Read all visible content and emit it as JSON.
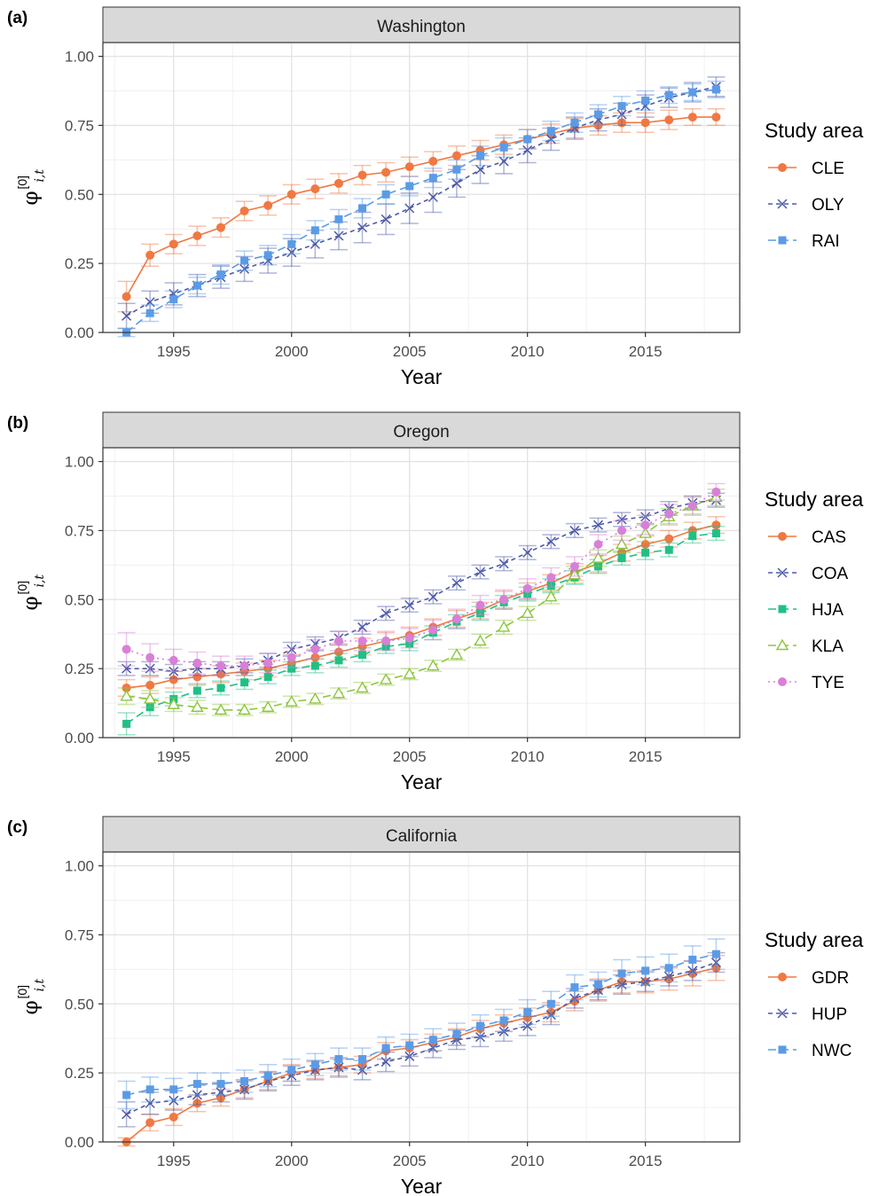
{
  "colors": {
    "CLE": "#f07842",
    "OLY": "#4e5aa8",
    "RAI": "#5b9be6",
    "CAS": "#f07842",
    "COA": "#4e5aa8",
    "HJA": "#20c085",
    "KLA": "#8dc63f",
    "TYE": "#d880d8",
    "GDR": "#f07842",
    "HUP": "#4e5aa8",
    "NWC": "#5b9be6"
  },
  "chart_data": [
    {
      "type": "line",
      "panel_tag": "(a)",
      "strip_title": "Washington",
      "xlabel": "Year",
      "ylabel_symbol": "φ",
      "ylabel_sub": "i,t",
      "ylabel_sup": "[0]",
      "ylim": [
        0,
        1.05
      ],
      "yticks": [
        "0.00",
        "0.25",
        "0.50",
        "0.75",
        "1.00"
      ],
      "xticks": [
        "1995",
        "2000",
        "2005",
        "2010",
        "2015"
      ],
      "legend_title": "Study area",
      "legend_position": "right",
      "grid": true,
      "x": [
        1993,
        1994,
        1995,
        1996,
        1997,
        1998,
        1999,
        2000,
        2001,
        2002,
        2003,
        2004,
        2005,
        2006,
        2007,
        2008,
        2009,
        2010,
        2011,
        2012,
        2013,
        2014,
        2015,
        2016,
        2017,
        2018
      ],
      "series": [
        {
          "name": "CLE",
          "marker": "circle",
          "dash": "solid",
          "values": [
            0.13,
            0.28,
            0.32,
            0.35,
            0.38,
            0.44,
            0.46,
            0.5,
            0.52,
            0.54,
            0.57,
            0.58,
            0.6,
            0.62,
            0.64,
            0.66,
            0.68,
            0.7,
            0.72,
            0.74,
            0.75,
            0.76,
            0.76,
            0.77,
            0.78,
            0.78
          ],
          "err": [
            0.055,
            0.04,
            0.035,
            0.035,
            0.035,
            0.035,
            0.035,
            0.035,
            0.035,
            0.035,
            0.035,
            0.035,
            0.035,
            0.035,
            0.035,
            0.035,
            0.035,
            0.035,
            0.035,
            0.035,
            0.035,
            0.035,
            0.035,
            0.035,
            0.03,
            0.03
          ]
        },
        {
          "name": "OLY",
          "marker": "x",
          "dash": "dashed",
          "values": [
            0.06,
            0.11,
            0.14,
            0.17,
            0.2,
            0.23,
            0.26,
            0.29,
            0.32,
            0.35,
            0.38,
            0.41,
            0.45,
            0.49,
            0.54,
            0.59,
            0.62,
            0.66,
            0.7,
            0.74,
            0.77,
            0.79,
            0.82,
            0.85,
            0.87,
            0.89
          ],
          "err": [
            0.045,
            0.04,
            0.04,
            0.04,
            0.04,
            0.045,
            0.045,
            0.05,
            0.05,
            0.05,
            0.055,
            0.055,
            0.055,
            0.055,
            0.05,
            0.05,
            0.045,
            0.045,
            0.04,
            0.04,
            0.04,
            0.04,
            0.04,
            0.035,
            0.035,
            0.035
          ]
        },
        {
          "name": "RAI",
          "marker": "square",
          "dash": "longdash",
          "values": [
            0.0,
            0.07,
            0.12,
            0.17,
            0.21,
            0.26,
            0.28,
            0.32,
            0.37,
            0.41,
            0.45,
            0.5,
            0.53,
            0.56,
            0.59,
            0.64,
            0.67,
            0.7,
            0.73,
            0.76,
            0.79,
            0.82,
            0.84,
            0.86,
            0.87,
            0.88
          ],
          "err": [
            0.015,
            0.03,
            0.03,
            0.03,
            0.035,
            0.035,
            0.035,
            0.035,
            0.035,
            0.035,
            0.035,
            0.035,
            0.035,
            0.035,
            0.035,
            0.035,
            0.035,
            0.035,
            0.035,
            0.035,
            0.035,
            0.035,
            0.035,
            0.03,
            0.03,
            0.03
          ]
        }
      ]
    },
    {
      "type": "line",
      "panel_tag": "(b)",
      "strip_title": "Oregon",
      "xlabel": "Year",
      "ylabel_symbol": "φ",
      "ylabel_sub": "i,t",
      "ylabel_sup": "[0]",
      "ylim": [
        0,
        1.05
      ],
      "yticks": [
        "0.00",
        "0.25",
        "0.50",
        "0.75",
        "1.00"
      ],
      "xticks": [
        "1995",
        "2000",
        "2005",
        "2010",
        "2015"
      ],
      "legend_title": "Study area",
      "legend_position": "right",
      "grid": true,
      "x": [
        1993,
        1994,
        1995,
        1996,
        1997,
        1998,
        1999,
        2000,
        2001,
        2002,
        2003,
        2004,
        2005,
        2006,
        2007,
        2008,
        2009,
        2010,
        2011,
        2012,
        2013,
        2014,
        2015,
        2016,
        2017,
        2018
      ],
      "series": [
        {
          "name": "CAS",
          "marker": "circle",
          "dash": "solid",
          "values": [
            0.18,
            0.19,
            0.21,
            0.22,
            0.23,
            0.24,
            0.25,
            0.27,
            0.29,
            0.31,
            0.33,
            0.35,
            0.37,
            0.4,
            0.43,
            0.46,
            0.5,
            0.53,
            0.56,
            0.6,
            0.63,
            0.67,
            0.7,
            0.72,
            0.75,
            0.77
          ],
          "err": [
            0.03,
            0.03,
            0.03,
            0.03,
            0.03,
            0.03,
            0.03,
            0.03,
            0.03,
            0.03,
            0.03,
            0.03,
            0.03,
            0.03,
            0.03,
            0.03,
            0.03,
            0.03,
            0.03,
            0.03,
            0.03,
            0.03,
            0.03,
            0.03,
            0.03,
            0.03
          ]
        },
        {
          "name": "COA",
          "marker": "x",
          "dash": "dashed",
          "values": [
            0.25,
            0.25,
            0.24,
            0.25,
            0.25,
            0.26,
            0.28,
            0.32,
            0.34,
            0.36,
            0.4,
            0.45,
            0.48,
            0.51,
            0.56,
            0.6,
            0.63,
            0.67,
            0.71,
            0.75,
            0.77,
            0.79,
            0.8,
            0.83,
            0.85,
            0.86
          ],
          "err": [
            0.025,
            0.025,
            0.025,
            0.025,
            0.025,
            0.025,
            0.025,
            0.025,
            0.025,
            0.025,
            0.025,
            0.025,
            0.025,
            0.025,
            0.025,
            0.025,
            0.025,
            0.025,
            0.025,
            0.025,
            0.025,
            0.025,
            0.025,
            0.025,
            0.025,
            0.025
          ]
        },
        {
          "name": "HJA",
          "marker": "square",
          "dash": "longdash",
          "values": [
            0.05,
            0.11,
            0.14,
            0.17,
            0.18,
            0.2,
            0.22,
            0.25,
            0.26,
            0.28,
            0.3,
            0.33,
            0.34,
            0.38,
            0.42,
            0.45,
            0.49,
            0.52,
            0.55,
            0.58,
            0.62,
            0.65,
            0.67,
            0.68,
            0.73,
            0.74
          ],
          "err": [
            0.04,
            0.03,
            0.025,
            0.025,
            0.025,
            0.025,
            0.025,
            0.025,
            0.025,
            0.025,
            0.025,
            0.025,
            0.025,
            0.025,
            0.025,
            0.025,
            0.025,
            0.025,
            0.025,
            0.025,
            0.025,
            0.025,
            0.025,
            0.025,
            0.025,
            0.025
          ]
        },
        {
          "name": "KLA",
          "marker": "triangle",
          "dash": "longdash",
          "values": [
            0.15,
            0.14,
            0.12,
            0.11,
            0.1,
            0.1,
            0.11,
            0.13,
            0.14,
            0.16,
            0.18,
            0.21,
            0.23,
            0.26,
            0.3,
            0.35,
            0.4,
            0.45,
            0.51,
            0.59,
            0.65,
            0.7,
            0.74,
            0.8,
            0.84,
            0.87
          ],
          "err": [
            0.03,
            0.03,
            0.025,
            0.025,
            0.02,
            0.02,
            0.02,
            0.02,
            0.02,
            0.02,
            0.02,
            0.02,
            0.02,
            0.02,
            0.02,
            0.025,
            0.025,
            0.025,
            0.025,
            0.03,
            0.03,
            0.03,
            0.03,
            0.03,
            0.03,
            0.03
          ]
        },
        {
          "name": "TYE",
          "marker": "circle",
          "dash": "dotted",
          "values": [
            0.32,
            0.29,
            0.28,
            0.27,
            0.26,
            0.26,
            0.27,
            0.29,
            0.32,
            0.35,
            0.35,
            0.35,
            0.36,
            0.39,
            0.43,
            0.48,
            0.5,
            0.54,
            0.58,
            0.62,
            0.7,
            0.75,
            0.77,
            0.81,
            0.84,
            0.89
          ],
          "err": [
            0.06,
            0.05,
            0.04,
            0.04,
            0.035,
            0.035,
            0.035,
            0.035,
            0.035,
            0.035,
            0.035,
            0.035,
            0.035,
            0.035,
            0.035,
            0.035,
            0.035,
            0.035,
            0.035,
            0.035,
            0.035,
            0.035,
            0.035,
            0.035,
            0.035,
            0.03
          ]
        }
      ]
    },
    {
      "type": "line",
      "panel_tag": "(c)",
      "strip_title": "California",
      "xlabel": "Year",
      "ylabel_symbol": "φ",
      "ylabel_sub": "i,t",
      "ylabel_sup": "[0]",
      "ylim": [
        0,
        1.05
      ],
      "yticks": [
        "0.00",
        "0.25",
        "0.50",
        "0.75",
        "1.00"
      ],
      "xticks": [
        "1995",
        "2000",
        "2005",
        "2010",
        "2015"
      ],
      "legend_title": "Study area",
      "legend_position": "right",
      "grid": true,
      "x": [
        1993,
        1994,
        1995,
        1996,
        1997,
        1998,
        1999,
        2000,
        2001,
        2002,
        2003,
        2004,
        2005,
        2006,
        2007,
        2008,
        2009,
        2010,
        2011,
        2012,
        2013,
        2014,
        2015,
        2016,
        2017,
        2018
      ],
      "series": [
        {
          "name": "GDR",
          "marker": "circle",
          "dash": "solid",
          "values": [
            0.0,
            0.07,
            0.09,
            0.14,
            0.16,
            0.19,
            0.22,
            0.25,
            0.26,
            0.27,
            0.28,
            0.33,
            0.34,
            0.36,
            0.38,
            0.41,
            0.43,
            0.45,
            0.47,
            0.51,
            0.55,
            0.58,
            0.58,
            0.59,
            0.61,
            0.63
          ],
          "err": [
            0.015,
            0.03,
            0.03,
            0.03,
            0.03,
            0.03,
            0.03,
            0.03,
            0.03,
            0.03,
            0.03,
            0.03,
            0.03,
            0.03,
            0.03,
            0.03,
            0.03,
            0.035,
            0.035,
            0.035,
            0.04,
            0.04,
            0.04,
            0.04,
            0.045,
            0.045
          ]
        },
        {
          "name": "HUP",
          "marker": "x",
          "dash": "dashed",
          "values": [
            0.1,
            0.14,
            0.15,
            0.17,
            0.18,
            0.19,
            0.22,
            0.24,
            0.26,
            0.27,
            0.26,
            0.29,
            0.31,
            0.34,
            0.37,
            0.38,
            0.4,
            0.42,
            0.46,
            0.52,
            0.55,
            0.57,
            0.58,
            0.6,
            0.62,
            0.65
          ],
          "err": [
            0.045,
            0.04,
            0.035,
            0.035,
            0.035,
            0.035,
            0.035,
            0.035,
            0.035,
            0.035,
            0.035,
            0.035,
            0.035,
            0.035,
            0.035,
            0.035,
            0.035,
            0.035,
            0.035,
            0.035,
            0.035,
            0.035,
            0.035,
            0.035,
            0.035,
            0.035
          ]
        },
        {
          "name": "NWC",
          "marker": "square",
          "dash": "longdash",
          "values": [
            0.17,
            0.19,
            0.19,
            0.21,
            0.21,
            0.22,
            0.24,
            0.26,
            0.28,
            0.3,
            0.3,
            0.34,
            0.35,
            0.37,
            0.39,
            0.42,
            0.44,
            0.47,
            0.5,
            0.56,
            0.57,
            0.61,
            0.62,
            0.63,
            0.66,
            0.68
          ],
          "err": [
            0.05,
            0.045,
            0.04,
            0.04,
            0.04,
            0.04,
            0.04,
            0.04,
            0.04,
            0.04,
            0.04,
            0.04,
            0.04,
            0.04,
            0.04,
            0.04,
            0.04,
            0.045,
            0.045,
            0.045,
            0.045,
            0.05,
            0.05,
            0.05,
            0.05,
            0.055
          ]
        }
      ]
    }
  ]
}
